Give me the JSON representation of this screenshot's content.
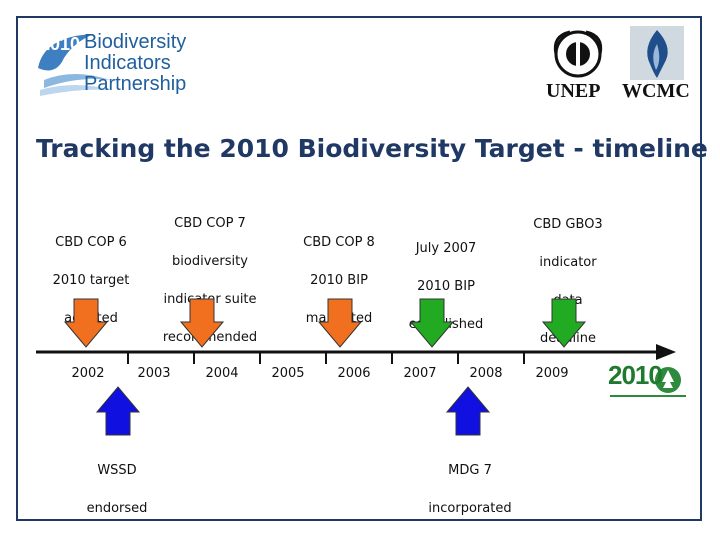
{
  "header": {
    "partner_logo": {
      "year": "2010",
      "name_lines": [
        "Biodiversity",
        "Indicators",
        "Partnership"
      ]
    },
    "org_logos": [
      {
        "name": "UNEP",
        "icon": "unep-emblem-icon"
      },
      {
        "name": "WCMC",
        "icon": "wcmc-flame-icon"
      }
    ]
  },
  "title": "Tracking the 2010 Biodiversity Target - timeline",
  "timeline": {
    "years": [
      "2002",
      "2003",
      "2004",
      "2005",
      "2006",
      "2007",
      "2008",
      "2009"
    ],
    "events_above": [
      {
        "id": "cop6",
        "lines": [
          "CBD COP 6",
          "2010 target",
          "adopted"
        ],
        "color": "#f07020"
      },
      {
        "id": "cop7",
        "lines": [
          "CBD COP 7",
          "biodiversity",
          "indicator suite",
          "recommended"
        ],
        "color": "#f07020"
      },
      {
        "id": "cop8",
        "lines": [
          "CBD COP 8",
          "2010 BIP",
          "mandated"
        ],
        "color": "#f07020"
      },
      {
        "id": "bip",
        "lines": [
          "July 2007",
          "2010 BIP",
          "established"
        ],
        "color": "#22aa22"
      },
      {
        "id": "gbo3",
        "lines": [
          "CBD GBO3",
          "indicator",
          "data",
          "deadline"
        ],
        "color": "#22aa22"
      }
    ],
    "events_below": [
      {
        "id": "wssd",
        "lines": [
          "WSSD",
          "endorsed"
        ],
        "color": "#1010e0"
      },
      {
        "id": "mdg7",
        "lines": [
          "MDG 7",
          "incorporated"
        ],
        "color": "#1010e0"
      }
    ]
  },
  "end_logo": {
    "text": "2010",
    "icon": "2010-target-logo-icon"
  }
}
